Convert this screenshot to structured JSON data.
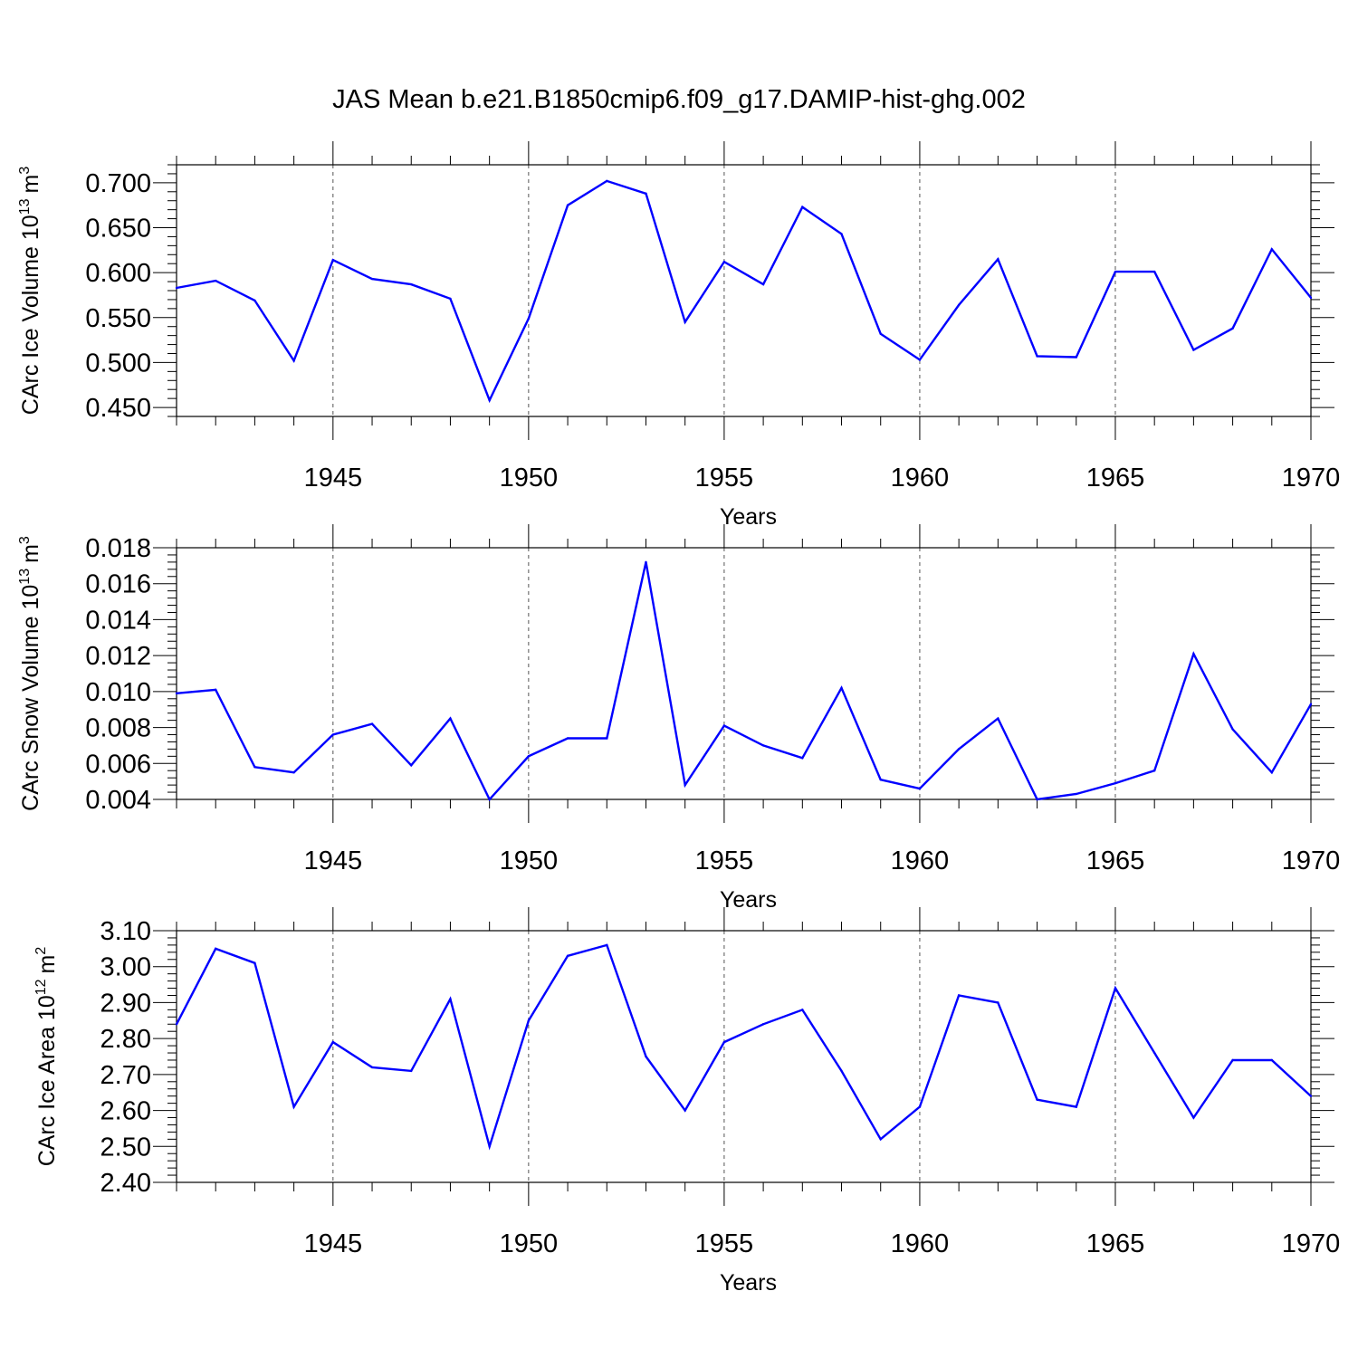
{
  "title": "JAS Mean b.e21.B1850cmip6.f09_g17.DAMIP-hist-ghg.002",
  "line_color": "#0000ff",
  "chart_data": [
    {
      "type": "line",
      "ylabel_main": "CArc Ice Volume 10",
      "ylabel_exp": "13",
      "ylabel_unit": "m",
      "ylabel_unit_exp": "3",
      "xlabel": "Years",
      "xlim": [
        1941,
        1970
      ],
      "ylim": [
        0.44,
        0.72
      ],
      "yticks": [
        0.45,
        0.5,
        0.55,
        0.6,
        0.65,
        0.7
      ],
      "ytick_labels": [
        "0.450",
        "0.500",
        "0.550",
        "0.600",
        "0.650",
        "0.700"
      ],
      "xticks": [
        1945,
        1950,
        1955,
        1960,
        1965,
        1970
      ],
      "xtick_labels": [
        "1945",
        "1950",
        "1955",
        "1960",
        "1965",
        "1970"
      ],
      "grid": "vertical dashed at major x ticks",
      "x": [
        1941,
        1942,
        1943,
        1944,
        1945,
        1946,
        1947,
        1948,
        1949,
        1950,
        1951,
        1952,
        1953,
        1954,
        1955,
        1956,
        1957,
        1958,
        1959,
        1960,
        1961,
        1962,
        1963,
        1964,
        1965,
        1966,
        1967,
        1968,
        1969,
        1970
      ],
      "values": [
        0.583,
        0.591,
        0.569,
        0.502,
        0.614,
        0.593,
        0.587,
        0.571,
        0.458,
        0.549,
        0.675,
        0.702,
        0.688,
        0.545,
        0.612,
        0.587,
        0.673,
        0.643,
        0.532,
        0.503,
        0.564,
        0.615,
        0.507,
        0.506,
        0.601,
        0.601,
        0.514,
        0.538,
        0.626,
        0.572
      ]
    },
    {
      "type": "line",
      "ylabel_main": "CArc Snow Volume 10",
      "ylabel_exp": "13",
      "ylabel_unit": "m",
      "ylabel_unit_exp": "3",
      "xlabel": "Years",
      "xlim": [
        1941,
        1970
      ],
      "ylim": [
        0.004,
        0.018
      ],
      "yticks": [
        0.004,
        0.006,
        0.008,
        0.01,
        0.012,
        0.014,
        0.016,
        0.018
      ],
      "ytick_labels": [
        "0.004",
        "0.006",
        "0.008",
        "0.010",
        "0.012",
        "0.014",
        "0.016",
        "0.018"
      ],
      "xticks": [
        1945,
        1950,
        1955,
        1960,
        1965,
        1970
      ],
      "xtick_labels": [
        "1945",
        "1950",
        "1955",
        "1960",
        "1965",
        "1970"
      ],
      "grid": "vertical dashed at major x ticks",
      "x": [
        1941,
        1942,
        1943,
        1944,
        1945,
        1946,
        1947,
        1948,
        1949,
        1950,
        1951,
        1952,
        1953,
        1954,
        1955,
        1956,
        1957,
        1958,
        1959,
        1960,
        1961,
        1962,
        1963,
        1964,
        1965,
        1966,
        1967,
        1968,
        1969,
        1970
      ],
      "values": [
        0.0099,
        0.0101,
        0.0058,
        0.0055,
        0.0076,
        0.0082,
        0.0059,
        0.0085,
        0.004,
        0.0064,
        0.0074,
        0.0074,
        0.0172,
        0.0048,
        0.0081,
        0.007,
        0.0063,
        0.0102,
        0.0051,
        0.0046,
        0.0068,
        0.0085,
        0.004,
        0.0043,
        0.0049,
        0.0056,
        0.0121,
        0.0079,
        0.0055,
        0.0093
      ]
    },
    {
      "type": "line",
      "ylabel_main": "CArc Ice Area 10",
      "ylabel_exp": "12",
      "ylabel_unit": "m",
      "ylabel_unit_exp": "2",
      "xlabel": "Years",
      "xlim": [
        1941,
        1970
      ],
      "ylim": [
        2.4,
        3.1
      ],
      "yticks": [
        2.4,
        2.5,
        2.6,
        2.7,
        2.8,
        2.9,
        3.0,
        3.1
      ],
      "ytick_labels": [
        "2.40",
        "2.50",
        "2.60",
        "2.70",
        "2.80",
        "2.90",
        "3.00",
        "3.10"
      ],
      "xticks": [
        1945,
        1950,
        1955,
        1960,
        1965,
        1970
      ],
      "xtick_labels": [
        "1945",
        "1950",
        "1955",
        "1960",
        "1965",
        "1970"
      ],
      "grid": "vertical dashed at major x ticks",
      "x": [
        1941,
        1942,
        1943,
        1944,
        1945,
        1946,
        1947,
        1948,
        1949,
        1950,
        1951,
        1952,
        1953,
        1954,
        1955,
        1956,
        1957,
        1958,
        1959,
        1960,
        1961,
        1962,
        1963,
        1964,
        1965,
        1966,
        1967,
        1968,
        1969,
        1970
      ],
      "values": [
        2.84,
        3.05,
        3.01,
        2.61,
        2.79,
        2.72,
        2.71,
        2.91,
        2.5,
        2.85,
        3.03,
        3.06,
        2.75,
        2.6,
        2.79,
        2.84,
        2.88,
        2.71,
        2.52,
        2.61,
        2.92,
        2.9,
        2.63,
        2.61,
        2.94,
        2.76,
        2.58,
        2.74,
        2.74,
        2.64
      ]
    }
  ]
}
